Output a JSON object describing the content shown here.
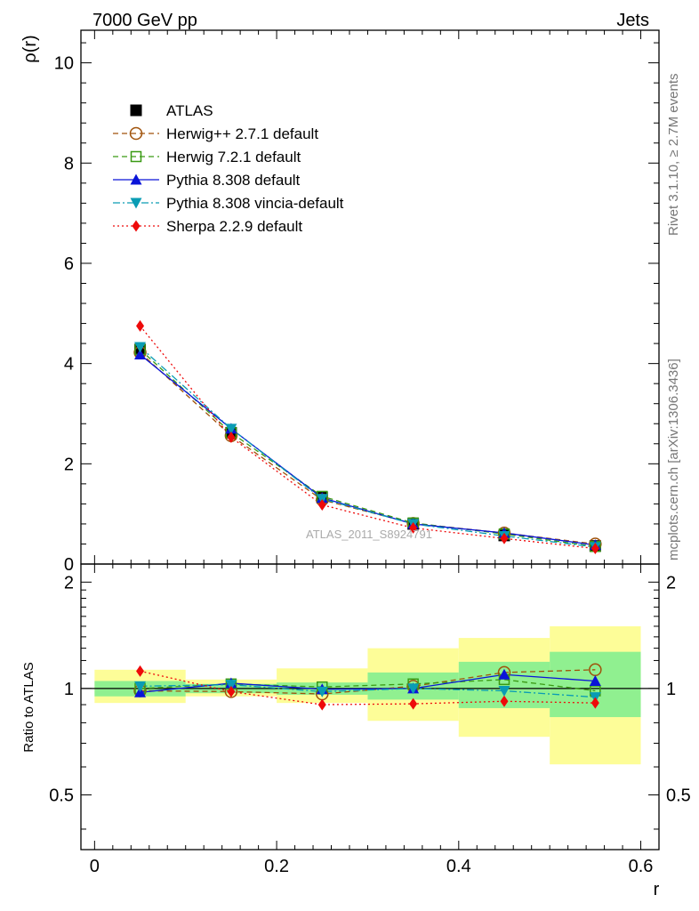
{
  "header": {
    "left": "7000 GeV pp",
    "right": "Jets"
  },
  "side_text": {
    "rivet": "Rivet 3.1.10, ≥ 2.7M events",
    "mcplots": "mcplots.cern.ch [arXiv:1306.3436]"
  },
  "watermark": "ATLAS_2011_S8924791",
  "chart_data": [
    {
      "type": "line",
      "panel": "main",
      "ylabel": "ρ(r)",
      "xlim": [
        -0.015,
        0.62
      ],
      "ylim": [
        0,
        10.65
      ],
      "xticks": [
        0,
        0.2,
        0.4,
        0.6
      ],
      "yticks": [
        0,
        2,
        4,
        6,
        8,
        10
      ],
      "ytick_labels": [
        "0",
        "2",
        "4",
        "6",
        "8",
        "10"
      ],
      "x": [
        0.05,
        0.15,
        0.25,
        0.35,
        0.45,
        0.55
      ],
      "legend_position": "top-left",
      "series": [
        {
          "name": "ATLAS",
          "color": "#000000",
          "marker": "square-filled",
          "line": "none",
          "values": [
            4.28,
            2.62,
            1.33,
            0.8,
            0.57,
            0.36
          ]
        },
        {
          "name": "Herwig++ 2.7.1 default",
          "color": "#a0520a",
          "marker": "circle-open",
          "line": "dashed",
          "values": [
            4.22,
            2.56,
            1.28,
            0.81,
            0.62,
            0.4
          ]
        },
        {
          "name": "Herwig 7.2.1 default",
          "color": "#3a9a14",
          "marker": "square-open",
          "line": "dashed",
          "values": [
            4.28,
            2.62,
            1.35,
            0.82,
            0.6,
            0.35
          ]
        },
        {
          "name": "Pythia 8.308 default",
          "color": "#0a14d8",
          "marker": "triangle-up-filled",
          "line": "solid",
          "values": [
            4.18,
            2.7,
            1.32,
            0.8,
            0.62,
            0.38
          ]
        },
        {
          "name": "Pythia 8.308 vincia-default",
          "color": "#0a9cb4",
          "marker": "triangle-down-filled",
          "line": "dashdot",
          "values": [
            4.33,
            2.7,
            1.3,
            0.8,
            0.56,
            0.34
          ]
        },
        {
          "name": "Sherpa 2.2.9 default",
          "color": "#ee0a0a",
          "marker": "diamond-filled",
          "line": "dotted",
          "values": [
            4.75,
            2.53,
            1.18,
            0.72,
            0.51,
            0.31
          ]
        }
      ]
    },
    {
      "type": "line",
      "panel": "ratio",
      "xlabel": "r",
      "ylabel": "Ratio to ATLAS",
      "xlim": [
        -0.015,
        0.62
      ],
      "ylim": [
        0.35,
        2.25
      ],
      "y_scale": "log",
      "xticks": [
        0,
        0.2,
        0.4,
        0.6
      ],
      "xtick_labels": [
        "0",
        "0.2",
        "0.4",
        "0.6"
      ],
      "yticks": [
        0.5,
        1,
        2
      ],
      "ytick_labels": [
        "0.5",
        "1",
        "2"
      ],
      "x": [
        0.05,
        0.15,
        0.25,
        0.35,
        0.45,
        0.55
      ],
      "uncertainty_bands": {
        "bin_edges": [
          0.0,
          0.1,
          0.2,
          0.3,
          0.4,
          0.5,
          0.6
        ],
        "stat": {
          "color": "#90f090",
          "low": [
            0.95,
            0.97,
            0.96,
            0.93,
            0.88,
            0.83
          ],
          "high": [
            1.05,
            1.03,
            1.04,
            1.11,
            1.19,
            1.27
          ]
        },
        "total": {
          "color": "#fdfd98",
          "low": [
            0.91,
            0.95,
            0.91,
            0.81,
            0.73,
            0.61
          ],
          "high": [
            1.13,
            1.06,
            1.14,
            1.3,
            1.39,
            1.5
          ]
        }
      },
      "series": [
        {
          "name": "Herwig++ 2.7.1 default",
          "values": [
            0.985,
            0.98,
            0.965,
            1.015,
            1.11,
            1.13
          ]
        },
        {
          "name": "Herwig 7.2.1 default",
          "values": [
            1.0,
            1.03,
            1.01,
            1.03,
            1.06,
            0.985
          ]
        },
        {
          "name": "Pythia 8.308 default",
          "values": [
            0.975,
            1.035,
            0.995,
            1.0,
            1.095,
            1.05
          ]
        },
        {
          "name": "Pythia 8.308 vincia-default",
          "values": [
            1.015,
            1.025,
            0.98,
            1.0,
            0.985,
            0.945
          ]
        },
        {
          "name": "Sherpa 2.2.9 default",
          "values": [
            1.12,
            0.98,
            0.9,
            0.905,
            0.92,
            0.91
          ]
        }
      ]
    }
  ]
}
